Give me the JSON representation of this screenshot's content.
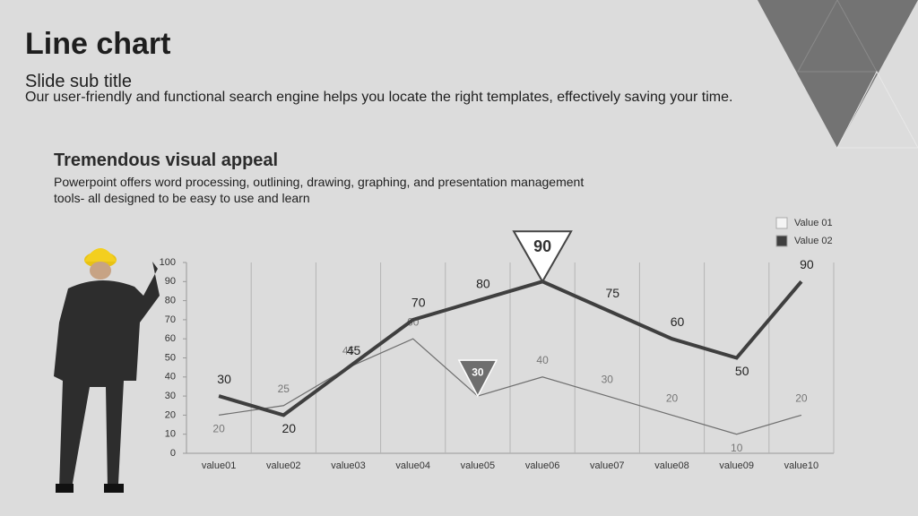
{
  "slide": {
    "title": "Line chart",
    "subtitle": "Slide sub title",
    "intro": "Our user-friendly and functional search engine helps you locate the right templates, effectively saving your time.",
    "heading": "Tremendous visual appeal",
    "body": "Powerpoint offers word processing, outlining, drawing, graphing, and presentation management tools- all designed to be easy to use and learn"
  },
  "chart_data": {
    "type": "line",
    "categories": [
      "value01",
      "value02",
      "value03",
      "value04",
      "value05",
      "value06",
      "value07",
      "value08",
      "value09",
      "value10"
    ],
    "series": [
      {
        "name": "Value 01",
        "color": "#6e6e6e",
        "values": [
          20,
          25,
          45,
          60,
          30,
          40,
          30,
          20,
          10,
          20
        ],
        "highlight_index": 4
      },
      {
        "name": "Value 02",
        "color": "#3f3f3f",
        "values": [
          30,
          20,
          45,
          70,
          80,
          90,
          75,
          60,
          50,
          90
        ],
        "highlight_index": 5
      }
    ],
    "ylim": [
      0,
      100
    ],
    "yticks": [
      0,
      10,
      20,
      30,
      40,
      50,
      60,
      70,
      80,
      90,
      100
    ],
    "grid": true,
    "legend": "top-right"
  }
}
